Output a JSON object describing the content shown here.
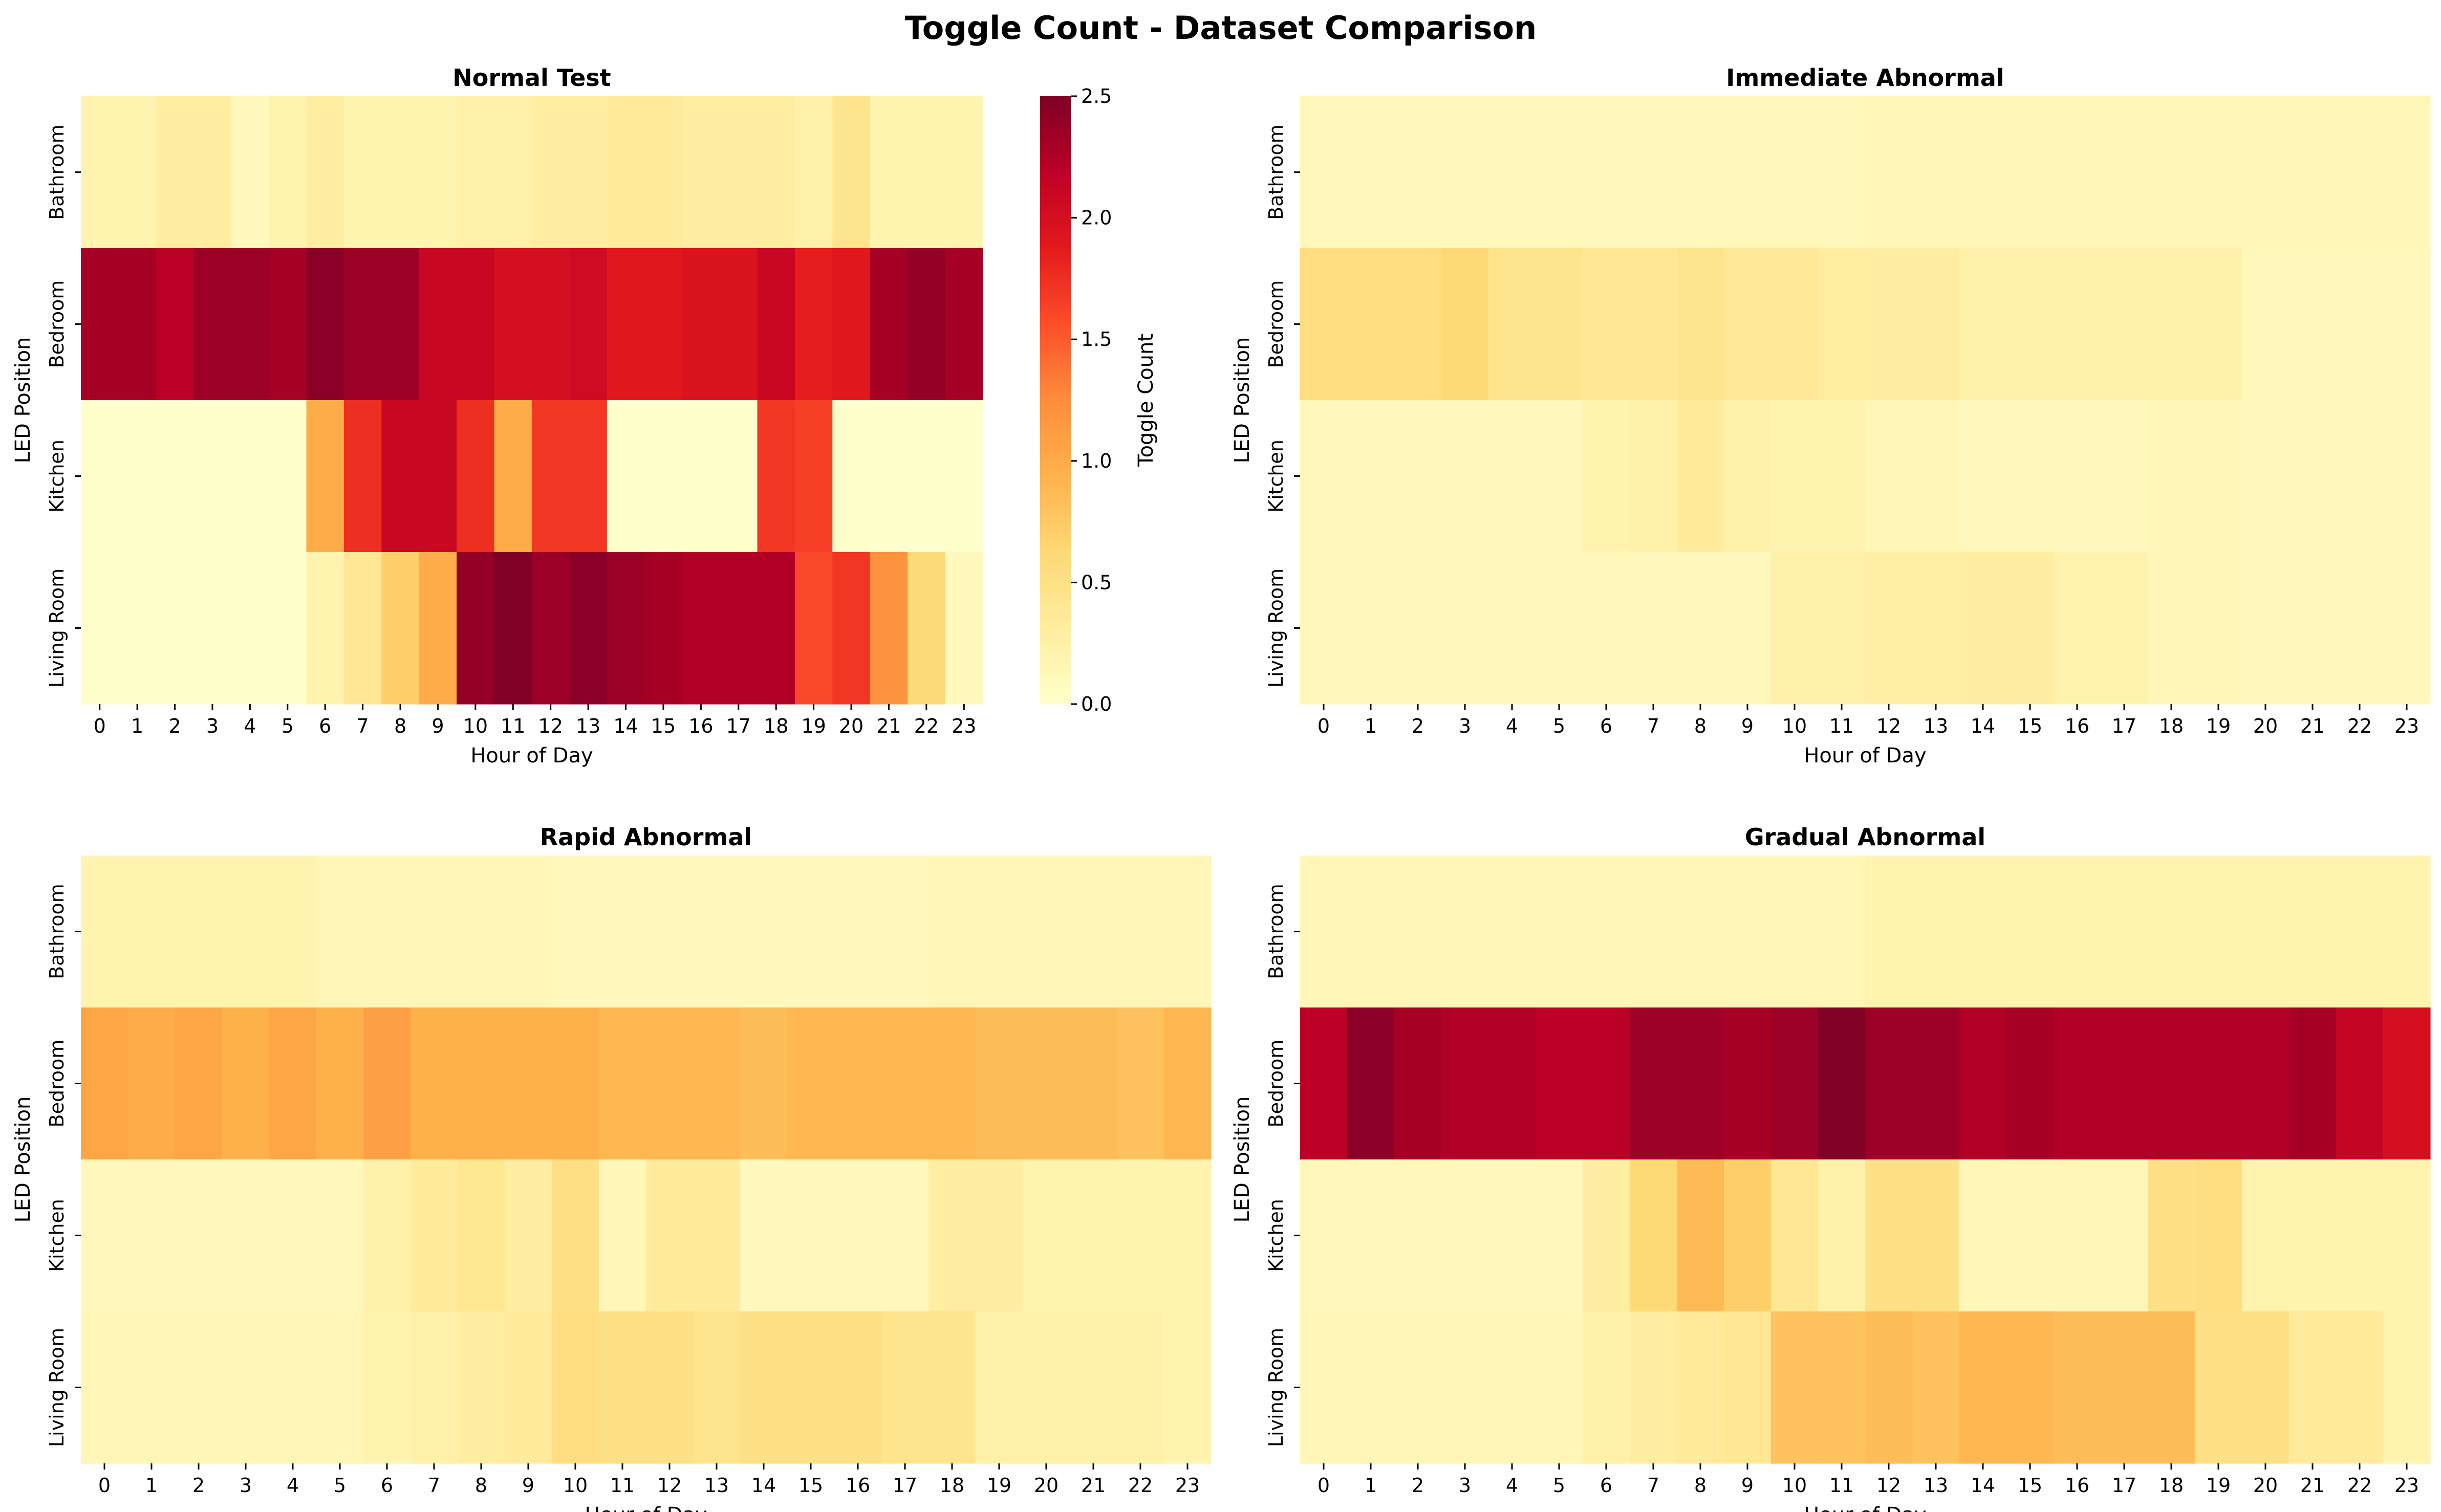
{
  "figure": {
    "title": "Toggle Count - Dataset Comparison"
  },
  "chart_data": [
    {
      "type": "heatmap",
      "title": "Normal Test",
      "xlabel": "Hour of Day",
      "ylabel": "LED Position",
      "x": [
        "0",
        "1",
        "2",
        "3",
        "4",
        "5",
        "6",
        "7",
        "8",
        "9",
        "10",
        "11",
        "12",
        "13",
        "14",
        "15",
        "16",
        "17",
        "18",
        "19",
        "20",
        "21",
        "22",
        "23"
      ],
      "y": [
        "Bathroom",
        "Bedroom",
        "Kitchen",
        "Living Room"
      ],
      "values": [
        [
          0.2,
          0.2,
          0.3,
          0.3,
          0.1,
          0.2,
          0.3,
          0.2,
          0.2,
          0.2,
          0.25,
          0.25,
          0.3,
          0.3,
          0.35,
          0.35,
          0.3,
          0.3,
          0.3,
          0.25,
          0.45,
          0.2,
          0.2,
          0.2
        ],
        [
          2.3,
          2.3,
          2.2,
          2.35,
          2.35,
          2.3,
          2.45,
          2.35,
          2.35,
          2.1,
          2.1,
          2.0,
          2.0,
          2.05,
          1.9,
          1.9,
          1.95,
          1.95,
          2.1,
          1.85,
          1.9,
          2.3,
          2.4,
          2.3
        ],
        [
          0,
          0,
          0,
          0,
          0,
          0,
          1.0,
          1.75,
          2.1,
          2.1,
          1.75,
          1.0,
          1.7,
          1.7,
          0,
          0,
          0,
          0,
          1.7,
          1.65,
          0,
          0,
          0,
          0
        ],
        [
          0,
          0,
          0,
          0,
          0,
          0,
          0.2,
          0.4,
          0.7,
          1.0,
          2.4,
          2.5,
          2.35,
          2.45,
          2.35,
          2.3,
          2.25,
          2.25,
          2.25,
          1.6,
          1.7,
          1.2,
          0.6,
          0.1
        ]
      ],
      "colorbar": {
        "label": "Toggle Count",
        "range": [
          0,
          2.5
        ],
        "ticks": [
          "0.0",
          "0.5",
          "1.0",
          "1.5",
          "2.0",
          "2.5"
        ]
      }
    },
    {
      "type": "heatmap",
      "title": "Immediate Abnormal",
      "xlabel": "Hour of Day",
      "ylabel": "LED Position",
      "x": [
        "0",
        "1",
        "2",
        "3",
        "4",
        "5",
        "6",
        "7",
        "8",
        "9",
        "10",
        "11",
        "12",
        "13",
        "14",
        "15",
        "16",
        "17",
        "18",
        "19",
        "20",
        "21",
        "22",
        "23"
      ],
      "y": [
        "Bathroom",
        "Bedroom",
        "Kitchen",
        "Living Room"
      ],
      "values": [
        [
          0.05,
          0.05,
          0.05,
          0.05,
          0.05,
          0.05,
          0.05,
          0.05,
          0.05,
          0.05,
          0.05,
          0.05,
          0.06,
          0.06,
          0.06,
          0.06,
          0.06,
          0.06,
          0.06,
          0.06,
          0.06,
          0.06,
          0.06,
          0.06
        ],
        [
          0.22,
          0.22,
          0.22,
          0.25,
          0.18,
          0.18,
          0.16,
          0.16,
          0.18,
          0.15,
          0.15,
          0.13,
          0.12,
          0.12,
          0.1,
          0.1,
          0.1,
          0.1,
          0.1,
          0.1,
          0.05,
          0.05,
          0.05,
          0.05
        ],
        [
          0.05,
          0.05,
          0.05,
          0.05,
          0.05,
          0.05,
          0.08,
          0.1,
          0.14,
          0.1,
          0.08,
          0.08,
          0.06,
          0.06,
          0.04,
          0.04,
          0.04,
          0.04,
          0.06,
          0.06,
          0.05,
          0.05,
          0.05,
          0.05
        ],
        [
          0.05,
          0.05,
          0.05,
          0.05,
          0.05,
          0.05,
          0.05,
          0.05,
          0.05,
          0.05,
          0.1,
          0.1,
          0.11,
          0.11,
          0.12,
          0.12,
          0.09,
          0.09,
          0.06,
          0.06,
          0.05,
          0.05,
          0.05,
          0.05
        ]
      ]
    },
    {
      "type": "heatmap",
      "title": "Rapid Abnormal",
      "xlabel": "Hour of Day",
      "ylabel": "LED Position",
      "x": [
        "0",
        "1",
        "2",
        "3",
        "4",
        "5",
        "6",
        "7",
        "8",
        "9",
        "10",
        "11",
        "12",
        "13",
        "14",
        "15",
        "16",
        "17",
        "18",
        "19",
        "20",
        "21",
        "22",
        "23"
      ],
      "y": [
        "Bathroom",
        "Bedroom",
        "Kitchen",
        "Living Room"
      ],
      "values": [
        [
          0.08,
          0.08,
          0.08,
          0.08,
          0.08,
          0.06,
          0.06,
          0.06,
          0.06,
          0.06,
          0.05,
          0.05,
          0.05,
          0.05,
          0.05,
          0.05,
          0.05,
          0.05,
          0.06,
          0.06,
          0.06,
          0.06,
          0.06,
          0.06
        ],
        [
          0.42,
          0.4,
          0.42,
          0.38,
          0.42,
          0.38,
          0.44,
          0.38,
          0.38,
          0.38,
          0.38,
          0.36,
          0.36,
          0.36,
          0.34,
          0.36,
          0.36,
          0.36,
          0.36,
          0.34,
          0.34,
          0.34,
          0.32,
          0.36
        ],
        [
          0.05,
          0.05,
          0.05,
          0.05,
          0.05,
          0.05,
          0.1,
          0.14,
          0.17,
          0.12,
          0.2,
          0.06,
          0.14,
          0.14,
          0.04,
          0.04,
          0.04,
          0.04,
          0.12,
          0.12,
          0.08,
          0.08,
          0.08,
          0.08
        ],
        [
          0.06,
          0.06,
          0.06,
          0.06,
          0.06,
          0.06,
          0.08,
          0.1,
          0.12,
          0.14,
          0.22,
          0.2,
          0.2,
          0.18,
          0.2,
          0.2,
          0.2,
          0.18,
          0.18,
          0.1,
          0.1,
          0.1,
          0.1,
          0.08
        ]
      ]
    },
    {
      "type": "heatmap",
      "title": "Gradual Abnormal",
      "xlabel": "Hour of Day",
      "ylabel": "LED Position",
      "x": [
        "0",
        "1",
        "2",
        "3",
        "4",
        "5",
        "6",
        "7",
        "8",
        "9",
        "10",
        "11",
        "12",
        "13",
        "14",
        "15",
        "16",
        "17",
        "18",
        "19",
        "20",
        "21",
        "22",
        "23"
      ],
      "y": [
        "Bathroom",
        "Bedroom",
        "Kitchen",
        "Living Room"
      ],
      "values": [
        [
          0.06,
          0.06,
          0.06,
          0.06,
          0.06,
          0.06,
          0.06,
          0.06,
          0.06,
          0.06,
          0.06,
          0.06,
          0.08,
          0.08,
          0.08,
          0.08,
          0.08,
          0.08,
          0.08,
          0.08,
          0.08,
          0.08,
          0.08,
          0.08
        ],
        [
          0.88,
          0.98,
          0.92,
          0.9,
          0.9,
          0.88,
          0.88,
          0.94,
          0.94,
          0.92,
          0.94,
          1.05,
          0.94,
          0.94,
          0.9,
          0.92,
          0.9,
          0.9,
          0.9,
          0.9,
          0.9,
          0.92,
          0.85,
          0.8
        ],
        [
          0.05,
          0.05,
          0.05,
          0.05,
          0.05,
          0.05,
          0.12,
          0.25,
          0.35,
          0.28,
          0.16,
          0.1,
          0.2,
          0.2,
          0.06,
          0.06,
          0.06,
          0.06,
          0.2,
          0.22,
          0.08,
          0.08,
          0.08,
          0.08
        ],
        [
          0.06,
          0.06,
          0.06,
          0.06,
          0.06,
          0.06,
          0.1,
          0.12,
          0.14,
          0.16,
          0.32,
          0.32,
          0.34,
          0.32,
          0.36,
          0.36,
          0.34,
          0.34,
          0.34,
          0.2,
          0.2,
          0.14,
          0.14,
          0.08
        ]
      ]
    }
  ]
}
